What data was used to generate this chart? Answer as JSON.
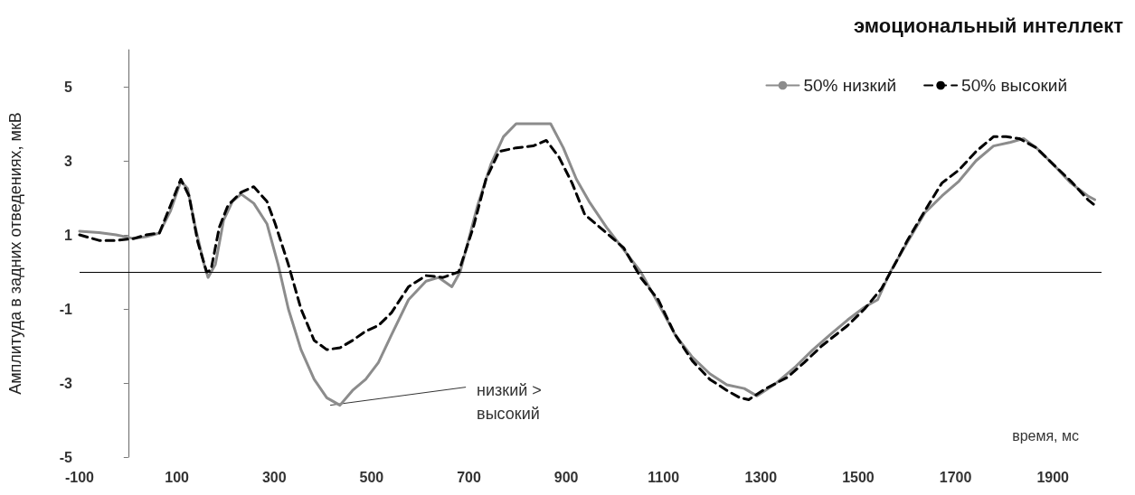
{
  "chart_data": {
    "type": "line",
    "title": "эмоциональный интеллект",
    "xlabel": "время, мс",
    "ylabel": "Амплитуда в задних отведениях, мкВ",
    "xlim": [
      -100,
      2000
    ],
    "xticks": [
      -100,
      100,
      300,
      500,
      700,
      900,
      1100,
      1300,
      1500,
      1700,
      1900
    ],
    "ylim": [
      -5,
      6
    ],
    "yticks": [
      -5,
      -3,
      -1,
      1,
      3,
      5
    ],
    "grid": false,
    "legend": "top right",
    "marker": "none",
    "ref_lines": [
      {
        "axis": "y",
        "value": 0,
        "color": "#000000"
      }
    ],
    "annotations": [
      {
        "text": "низкий >\nвысокий",
        "x": 415,
        "y": -3.6
      }
    ],
    "series": [
      {
        "name": "50% низкий",
        "color": "#8c8c8c",
        "line_style": "solid",
        "x": [
          -100,
          -60,
          -25,
          11,
          37,
          64,
          87,
          108,
          122,
          138,
          156,
          164,
          179,
          196,
          214,
          232,
          258,
          285,
          308,
          329,
          355,
          382,
          408,
          435,
          461,
          488,
          514,
          541,
          576,
          612,
          638,
          665,
          682,
          718,
          745,
          771,
          797,
          832,
          868,
          894,
          921,
          947,
          983,
          1018,
          1053,
          1089,
          1124,
          1159,
          1195,
          1230,
          1266,
          1292,
          1327,
          1372,
          1407,
          1442,
          1478,
          1513,
          1540,
          1566,
          1601,
          1637,
          1672,
          1707,
          1742,
          1778,
          1813,
          1840,
          1866,
          1901,
          1937,
          1972,
          1986
        ],
        "values": [
          1.1,
          1.06,
          1.0,
          0.9,
          0.95,
          1.05,
          1.65,
          2.45,
          2.25,
          1.2,
          0.2,
          -0.15,
          0.2,
          1.4,
          1.9,
          2.1,
          1.85,
          1.3,
          0.2,
          -1.0,
          -2.1,
          -2.9,
          -3.4,
          -3.6,
          -3.2,
          -2.9,
          -2.45,
          -1.7,
          -0.75,
          -0.25,
          -0.15,
          -0.4,
          0,
          1.8,
          2.9,
          3.65,
          4.0,
          4.0,
          4.0,
          3.35,
          2.5,
          1.9,
          1.2,
          0.6,
          0,
          -0.85,
          -1.7,
          -2.3,
          -2.75,
          -3.05,
          -3.15,
          -3.35,
          -3.05,
          -2.55,
          -2.1,
          -1.7,
          -1.3,
          -0.95,
          -0.75,
          0,
          0.8,
          1.6,
          2.05,
          2.45,
          3.0,
          3.4,
          3.5,
          3.6,
          3.35,
          2.9,
          2.4,
          2.05,
          1.95
        ]
      },
      {
        "name": "50% высокий",
        "color": "#000000",
        "line_style": "dashed",
        "x": [
          -100,
          -60,
          -25,
          11,
          37,
          64,
          87,
          108,
          125,
          143,
          161,
          170,
          187,
          205,
          232,
          258,
          285,
          302,
          329,
          355,
          382,
          408,
          435,
          461,
          488,
          514,
          541,
          576,
          612,
          647,
          679,
          709,
          735,
          762,
          797,
          832,
          859,
          885,
          912,
          938,
          983,
          1018,
          1053,
          1089,
          1124,
          1159,
          1195,
          1230,
          1257,
          1275,
          1310,
          1354,
          1389,
          1425,
          1478,
          1513,
          1548,
          1575,
          1601,
          1637,
          1672,
          1707,
          1742,
          1778,
          1804,
          1831,
          1866,
          1901,
          1937,
          1972,
          1986
        ],
        "values": [
          1.0,
          0.85,
          0.85,
          0.9,
          1.0,
          1.05,
          1.8,
          2.5,
          2.05,
          0.8,
          0,
          0.05,
          1.2,
          1.8,
          2.15,
          2.3,
          1.9,
          1.3,
          0.2,
          -1.0,
          -1.85,
          -2.1,
          -2.05,
          -1.85,
          -1.6,
          -1.45,
          -1.1,
          -0.4,
          -0.1,
          -0.15,
          0,
          1.2,
          2.5,
          3.25,
          3.35,
          3.4,
          3.55,
          3.1,
          2.4,
          1.55,
          1.05,
          0.65,
          -0.15,
          -0.75,
          -1.7,
          -2.4,
          -2.9,
          -3.2,
          -3.4,
          -3.45,
          -3.15,
          -2.85,
          -2.45,
          -2.0,
          -1.45,
          -1.0,
          -0.45,
          0.2,
          0.85,
          1.65,
          2.4,
          2.75,
          3.25,
          3.65,
          3.65,
          3.6,
          3.35,
          2.9,
          2.45,
          1.95,
          1.8
        ]
      }
    ]
  }
}
